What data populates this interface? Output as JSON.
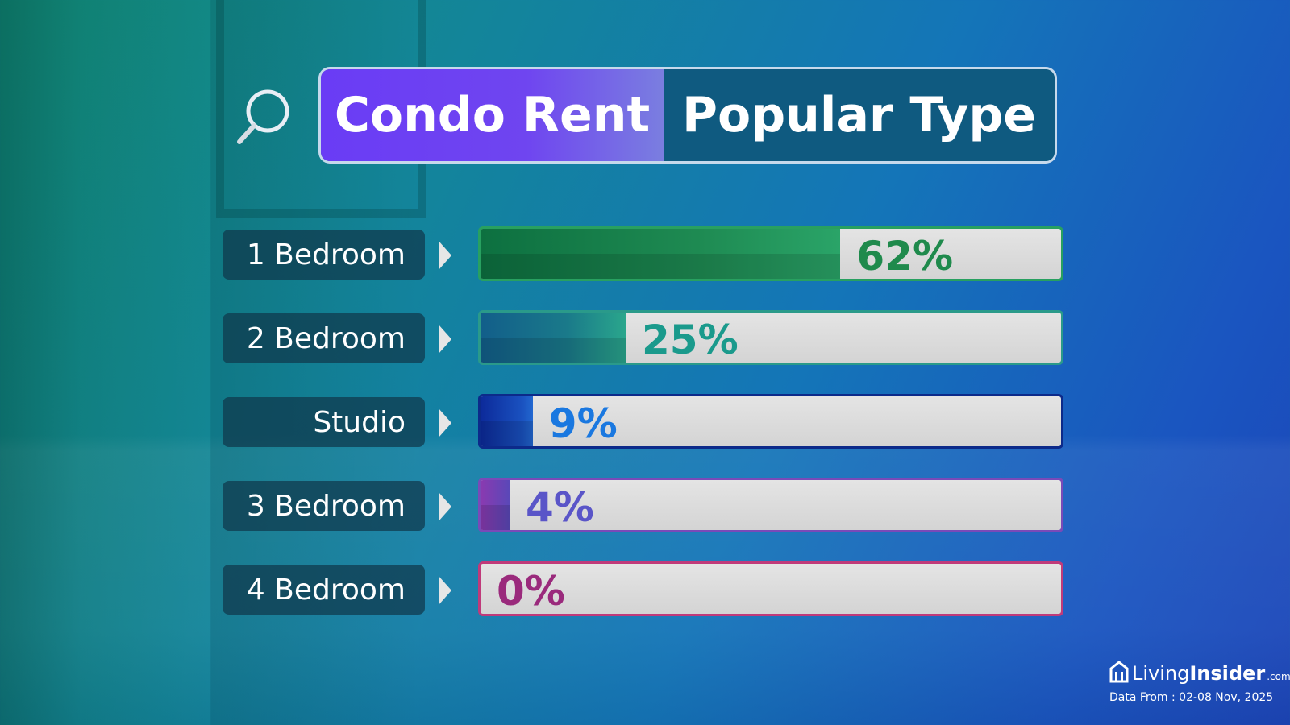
{
  "header": {
    "title_left": "Condo Rent",
    "title_right": "Popular Type",
    "icon": "search-icon"
  },
  "chart_data": {
    "type": "bar",
    "orientation": "horizontal",
    "categories": [
      "1 Bedroom",
      "2 Bedroom",
      "Studio",
      "3 Bedroom",
      "4 Bedroom"
    ],
    "values": [
      62,
      25,
      9,
      4,
      0
    ],
    "labels": [
      "62%",
      "25%",
      "9%",
      "4%",
      "0%"
    ],
    "xlim": [
      0,
      100
    ],
    "colors": [
      "#1f8a4c",
      "#1a9a8c",
      "#1a78e0",
      "#5a55c8",
      "#9a2a7c"
    ],
    "title": "",
    "xlabel": "",
    "ylabel": ""
  },
  "footer": {
    "brand_1": "Living",
    "brand_2": "Insider",
    "brand_3": ".com",
    "date": "Data From : 02-08 Nov, 2025"
  }
}
